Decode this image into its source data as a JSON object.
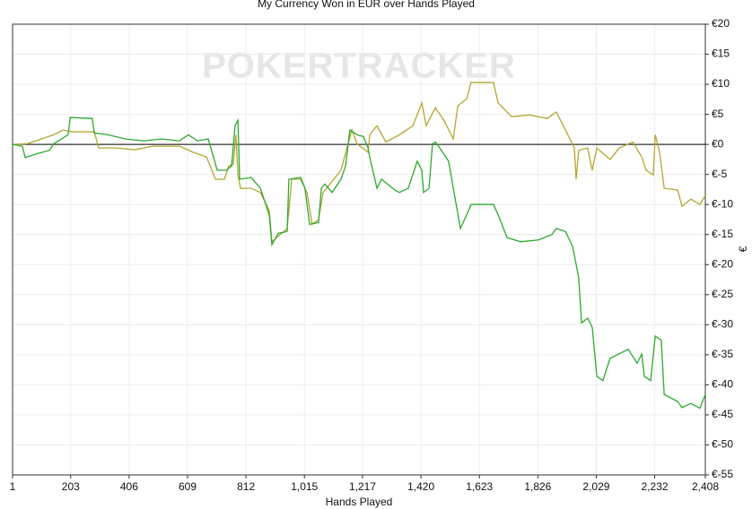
{
  "chart_data": {
    "type": "line",
    "title": "My Currency Won in EUR over Hands Played",
    "watermark": "POKERTRACKER",
    "xlabel": "Hands Played",
    "ylabel": "€",
    "grid": true,
    "zero_line": true,
    "y_axis_side": "right",
    "xlim": [
      1,
      2408
    ],
    "ylim": [
      -55,
      20
    ],
    "xticks": [
      1,
      203,
      406,
      609,
      812,
      {
        "value": 1015,
        "label": "1,015"
      },
      {
        "value": 1217,
        "label": "1,217"
      },
      {
        "value": 1420,
        "label": "1,420"
      },
      {
        "value": 1623,
        "label": "1,623"
      },
      {
        "value": 1826,
        "label": "1,826"
      },
      {
        "value": 2029,
        "label": "2,029"
      },
      {
        "value": 2232,
        "label": "2,232"
      },
      {
        "value": 2408,
        "label": "2,408"
      }
    ],
    "yticks": [
      {
        "value": 20,
        "label": "€20"
      },
      {
        "value": 15,
        "label": "€15"
      },
      {
        "value": 10,
        "label": "€10"
      },
      {
        "value": 5,
        "label": "€5"
      },
      {
        "value": 0,
        "label": "€0"
      },
      {
        "value": -5,
        "label": "€-5"
      },
      {
        "value": -10,
        "label": "€-10"
      },
      {
        "value": -15,
        "label": "€-15"
      },
      {
        "value": -20,
        "label": "€-20"
      },
      {
        "value": -25,
        "label": "€-25"
      },
      {
        "value": -30,
        "label": "€-30"
      },
      {
        "value": -35,
        "label": "€-35"
      },
      {
        "value": -40,
        "label": "€-40"
      },
      {
        "value": -45,
        "label": "€-45"
      },
      {
        "value": -50,
        "label": "€-50"
      },
      {
        "value": -55,
        "label": "€-55"
      }
    ],
    "series": [
      {
        "color": "#b5a632",
        "x": [
          1,
          51,
          82,
          144,
          176,
          207,
          285,
          300,
          363,
          425,
          487,
          581,
          628,
          675,
          706,
          737,
          752,
          768,
          777,
          784,
          793,
          830,
          862,
          893,
          902,
          955,
          971,
          1002,
          1024,
          1042,
          1064,
          1080,
          1142,
          1180,
          1198,
          1236,
          1242,
          1267,
          1298,
          1345,
          1392,
          1423,
          1438,
          1470,
          1501,
          1532,
          1548,
          1579,
          1594,
          1672,
          1688,
          1735,
          1797,
          1859,
          1890,
          1922,
          1953,
          1959,
          1968,
          1999,
          2015,
          2031,
          2077,
          2109,
          2156,
          2187,
          2202,
          2227,
          2234,
          2249,
          2265,
          2312,
          2327,
          2358,
          2389,
          2408
        ],
        "values": [
          0,
          0.1,
          0.6,
          1.6,
          2.4,
          2.1,
          2.1,
          -0.6,
          -0.6,
          -0.9,
          -0.3,
          -0.3,
          -1.3,
          -2.1,
          -5.8,
          -5.8,
          -3.6,
          -3.3,
          1.6,
          -5.1,
          -7.3,
          -7.3,
          -8.0,
          -11.0,
          -16.2,
          -14.0,
          -5.8,
          -5.8,
          -8.0,
          -13.3,
          -12.5,
          -8.0,
          -4.3,
          2.4,
          0.1,
          -1.3,
          1.6,
          3.1,
          0.4,
          1.6,
          3.1,
          6.9,
          3.1,
          6.1,
          3.9,
          0.9,
          6.4,
          7.6,
          10.3,
          10.3,
          6.9,
          4.6,
          4.9,
          4.3,
          5.4,
          2.4,
          -0.6,
          -5.8,
          -1.0,
          -0.6,
          -4.3,
          -0.6,
          -2.5,
          -0.6,
          0.4,
          -2.1,
          -4.3,
          -5.1,
          1.6,
          -1.3,
          -7.3,
          -7.6,
          -10.3,
          -9.1,
          -10.0,
          -8.5
        ]
      },
      {
        "color": "#2ea82e",
        "x": [
          1,
          35,
          45,
          82,
          129,
          144,
          194,
          201,
          278,
          285,
          332,
          394,
          457,
          519,
          581,
          612,
          643,
          681,
          699,
          712,
          743,
          762,
          774,
          784,
          790,
          830,
          862,
          893,
          902,
          924,
          955,
          961,
          1002,
          1017,
          1033,
          1064,
          1074,
          1086,
          1111,
          1142,
          1158,
          1173,
          1198,
          1220,
          1236,
          1242,
          1267,
          1283,
          1329,
          1345,
          1376,
          1407,
          1423,
          1429,
          1448,
          1460,
          1470,
          1485,
          1516,
          1557,
          1579,
          1594,
          1672,
          1688,
          1719,
          1766,
          1828,
          1875,
          1890,
          1922,
          1947,
          1968,
          1978,
          1999,
          2015,
          2031,
          2052,
          2077,
          2140,
          2171,
          2187,
          2196,
          2218,
          2234,
          2255,
          2265,
          2312,
          2327,
          2358,
          2389,
          2408
        ],
        "values": [
          0,
          -0.3,
          -2.2,
          -1.6,
          -1.0,
          0.1,
          1.6,
          4.5,
          4.3,
          1.9,
          1.6,
          0.9,
          0.6,
          0.9,
          0.6,
          1.6,
          0.6,
          0.9,
          -2.1,
          -4.3,
          -4.3,
          -3.6,
          3.1,
          4.0,
          -5.8,
          -5.5,
          -7.3,
          -11.8,
          -16.7,
          -14.8,
          -14.5,
          -5.8,
          -5.5,
          -7.3,
          -13.3,
          -13.0,
          -7.3,
          -6.6,
          -8.0,
          -5.8,
          -3.6,
          2.4,
          1.6,
          1.3,
          -0.6,
          -2.1,
          -7.3,
          -5.8,
          -7.6,
          -8.0,
          -7.3,
          -2.8,
          -4.3,
          -8.0,
          -7.3,
          0.1,
          0.4,
          -0.6,
          -2.8,
          -14.0,
          -11.7,
          -10.0,
          -10.0,
          -11.7,
          -15.5,
          -16.2,
          -15.9,
          -15.0,
          -14.0,
          -14.5,
          -17.0,
          -22.2,
          -29.7,
          -28.9,
          -30.4,
          -38.6,
          -39.3,
          -35.6,
          -34.1,
          -36.4,
          -34.9,
          -38.6,
          -39.3,
          -31.9,
          -32.6,
          -41.6,
          -42.8,
          -43.8,
          -43.1,
          -43.9,
          -41.6
        ]
      }
    ]
  }
}
